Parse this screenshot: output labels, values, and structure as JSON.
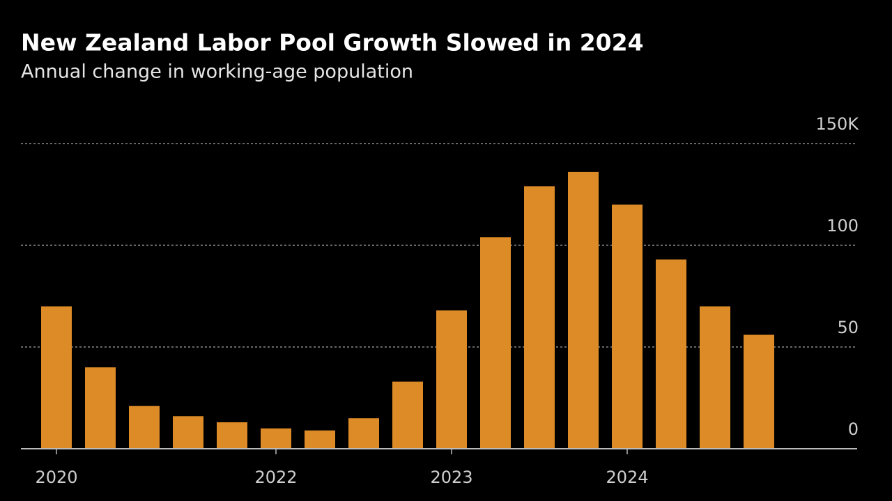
{
  "chart_data": {
    "type": "bar",
    "title": "New Zealand Labor Pool Growth Slowed in 2024",
    "subtitle": "Annual change in working-age population",
    "categories": [
      "2020",
      null,
      null,
      null,
      null,
      "2022",
      null,
      null,
      null,
      "2023",
      null,
      null,
      null,
      "2024",
      null,
      null,
      null
    ],
    "values": [
      70,
      40,
      21,
      16,
      13,
      10,
      9,
      15,
      33,
      68,
      104,
      129,
      136,
      120,
      93,
      70,
      56
    ],
    "color": "#dd8b27",
    "ylim": [
      0,
      150
    ],
    "yticks": [
      0,
      50,
      100,
      {
        "value": 150,
        "label": "150K"
      }
    ],
    "grid": true
  }
}
